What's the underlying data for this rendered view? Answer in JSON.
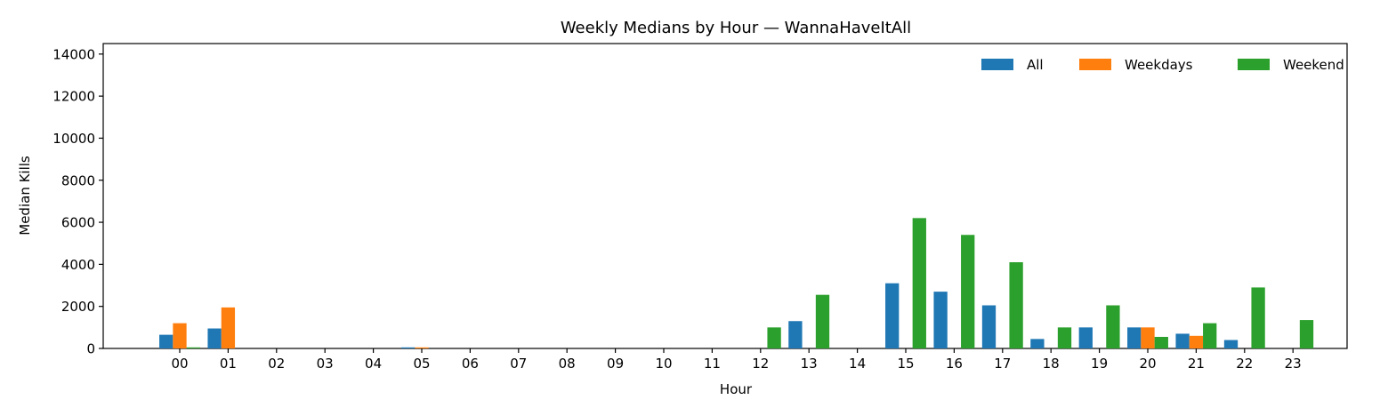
{
  "chart_data": {
    "type": "bar",
    "title": "Weekly Medians by Hour — WannaHaveItAll",
    "xlabel": "Hour",
    "ylabel": "Median Kills",
    "ylim": [
      0,
      14500
    ],
    "yticks": [
      "0",
      "2000",
      "4000",
      "6000",
      "8000",
      "10000",
      "12000",
      "14000"
    ],
    "categories": [
      "00",
      "01",
      "02",
      "03",
      "04",
      "05",
      "06",
      "07",
      "08",
      "09",
      "10",
      "11",
      "12",
      "13",
      "14",
      "15",
      "16",
      "17",
      "18",
      "19",
      "20",
      "21",
      "22",
      "23"
    ],
    "legend_position": "top-right",
    "grid": false,
    "series": [
      {
        "name": "All",
        "color": "#1f77b4",
        "values": [
          650,
          950,
          0,
          0,
          0,
          50,
          0,
          0,
          0,
          0,
          0,
          0,
          0,
          1300,
          0,
          3100,
          2700,
          2050,
          450,
          1000,
          1000,
          700,
          400,
          0
        ]
      },
      {
        "name": "Weekdays",
        "color": "#ff7f0e",
        "values": [
          1200,
          1950,
          0,
          0,
          0,
          50,
          0,
          0,
          0,
          0,
          0,
          0,
          0,
          0,
          0,
          0,
          0,
          0,
          0,
          0,
          1000,
          600,
          0,
          0
        ]
      },
      {
        "name": "Weekend",
        "color": "#2ca02c",
        "values": [
          50,
          0,
          0,
          0,
          0,
          0,
          0,
          0,
          0,
          0,
          0,
          0,
          1000,
          2550,
          0,
          6200,
          5400,
          4100,
          1000,
          2050,
          550,
          1200,
          2900,
          1350
        ]
      }
    ]
  }
}
